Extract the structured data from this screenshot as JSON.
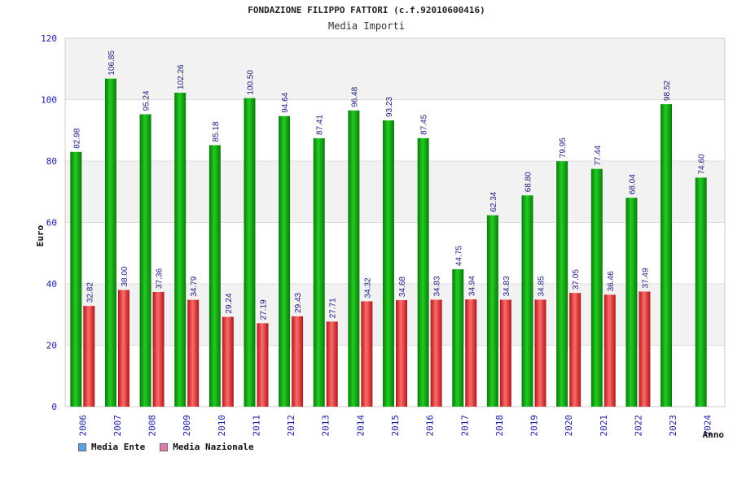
{
  "header": {
    "title": "FONDAZIONE FILIPPO FATTORI (c.f.92010600416)",
    "subtitle": "Media Importi"
  },
  "chart_data": {
    "type": "bar",
    "title": "FONDAZIONE FILIPPO FATTORI (c.f.92010600416)",
    "subtitle": "Media Importi",
    "xlabel": "Anno",
    "ylabel": "Euro",
    "ylim": [
      0,
      120
    ],
    "yticks": [
      0,
      20,
      40,
      60,
      80,
      100,
      120
    ],
    "grid": "horizontal bands",
    "legend_position": "bottom-left",
    "categories": [
      "2006",
      "2007",
      "2008",
      "2009",
      "2010",
      "2011",
      "2012",
      "2013",
      "2014",
      "2015",
      "2016",
      "2017",
      "2018",
      "2019",
      "2020",
      "2021",
      "2022",
      "2023",
      "2024"
    ],
    "series": [
      {
        "name": "Media Ente",
        "color": "#16b016",
        "values": [
          82.98,
          106.85,
          95.24,
          102.26,
          85.18,
          100.5,
          94.64,
          87.41,
          96.48,
          93.23,
          87.45,
          44.75,
          62.34,
          68.8,
          79.95,
          77.44,
          68.04,
          98.52,
          74.6
        ],
        "labels": [
          "82.98",
          "106.85",
          "95.24",
          "102.26",
          "85.18",
          "100.50",
          "94.64",
          "87.41",
          "96.48",
          "93.23",
          "87.45",
          "44.75",
          "62.34",
          "68.80",
          "79.95",
          "77.44",
          "68.04",
          "98.52",
          "74.60"
        ]
      },
      {
        "name": "Media Nazionale",
        "color": "#e03030",
        "values": [
          32.82,
          38.0,
          37.36,
          34.79,
          29.24,
          27.19,
          29.43,
          27.71,
          34.32,
          34.68,
          34.83,
          34.94,
          34.83,
          34.85,
          37.05,
          36.46,
          37.49,
          null,
          null
        ],
        "labels": [
          "32.82",
          "38.00",
          "37.36",
          "34.79",
          "29.24",
          "27.19",
          "29.43",
          "27.71",
          "34.32",
          "34.68",
          "34.83",
          "34.94",
          "34.83",
          "34.85",
          "37.05",
          "36.46",
          "37.49",
          "",
          ""
        ]
      }
    ]
  },
  "legend": {
    "items": [
      {
        "label": "Media Ente",
        "color": "#5ba3e6"
      },
      {
        "label": "Media Nazionale",
        "color": "#e07aa8"
      }
    ]
  }
}
